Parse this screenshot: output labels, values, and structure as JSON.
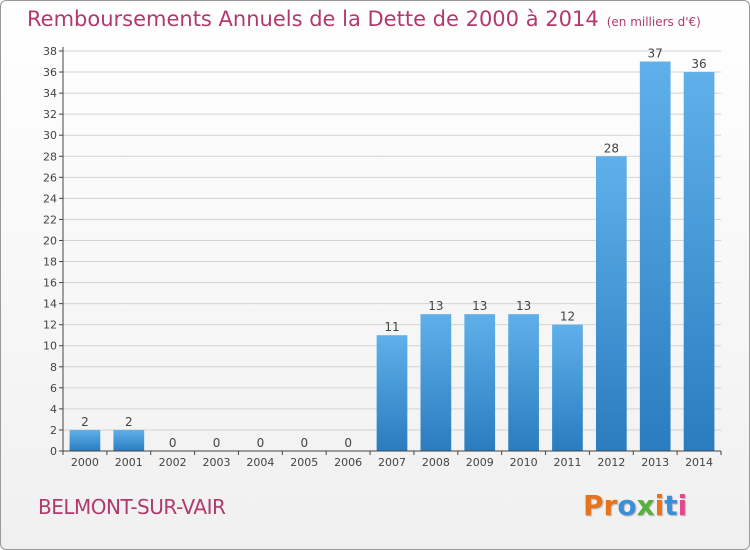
{
  "header": {
    "title": "Remboursements Annuels de la Dette de 2000 à 2014",
    "subtitle": "(en milliers d'€)"
  },
  "footer": {
    "place": "BELMONT-SUR-VAIR",
    "logo_text": "Proxiti",
    "logo_colors": [
      "#e8731c",
      "#e8731c",
      "#3b8fd6",
      "#58b041",
      "#e8731c",
      "#3b8fd6",
      "#e34a8c"
    ]
  },
  "colors": {
    "bar_top": "#5fb0ea",
    "bar_bottom": "#2a7cbf",
    "grid": "#d3d3d3",
    "text": "#444444",
    "axis": "#444444"
  },
  "chart_data": {
    "type": "bar",
    "categories": [
      "2000",
      "2001",
      "2002",
      "2003",
      "2004",
      "2005",
      "2006",
      "2007",
      "2008",
      "2009",
      "2010",
      "2011",
      "2012",
      "2013",
      "2014"
    ],
    "values": [
      2,
      2,
      0,
      0,
      0,
      0,
      0,
      11,
      13,
      13,
      13,
      12,
      28,
      37,
      36
    ],
    "ylim": [
      0,
      38
    ],
    "ytick_step": 2,
    "grid": true,
    "data_labels": true
  }
}
